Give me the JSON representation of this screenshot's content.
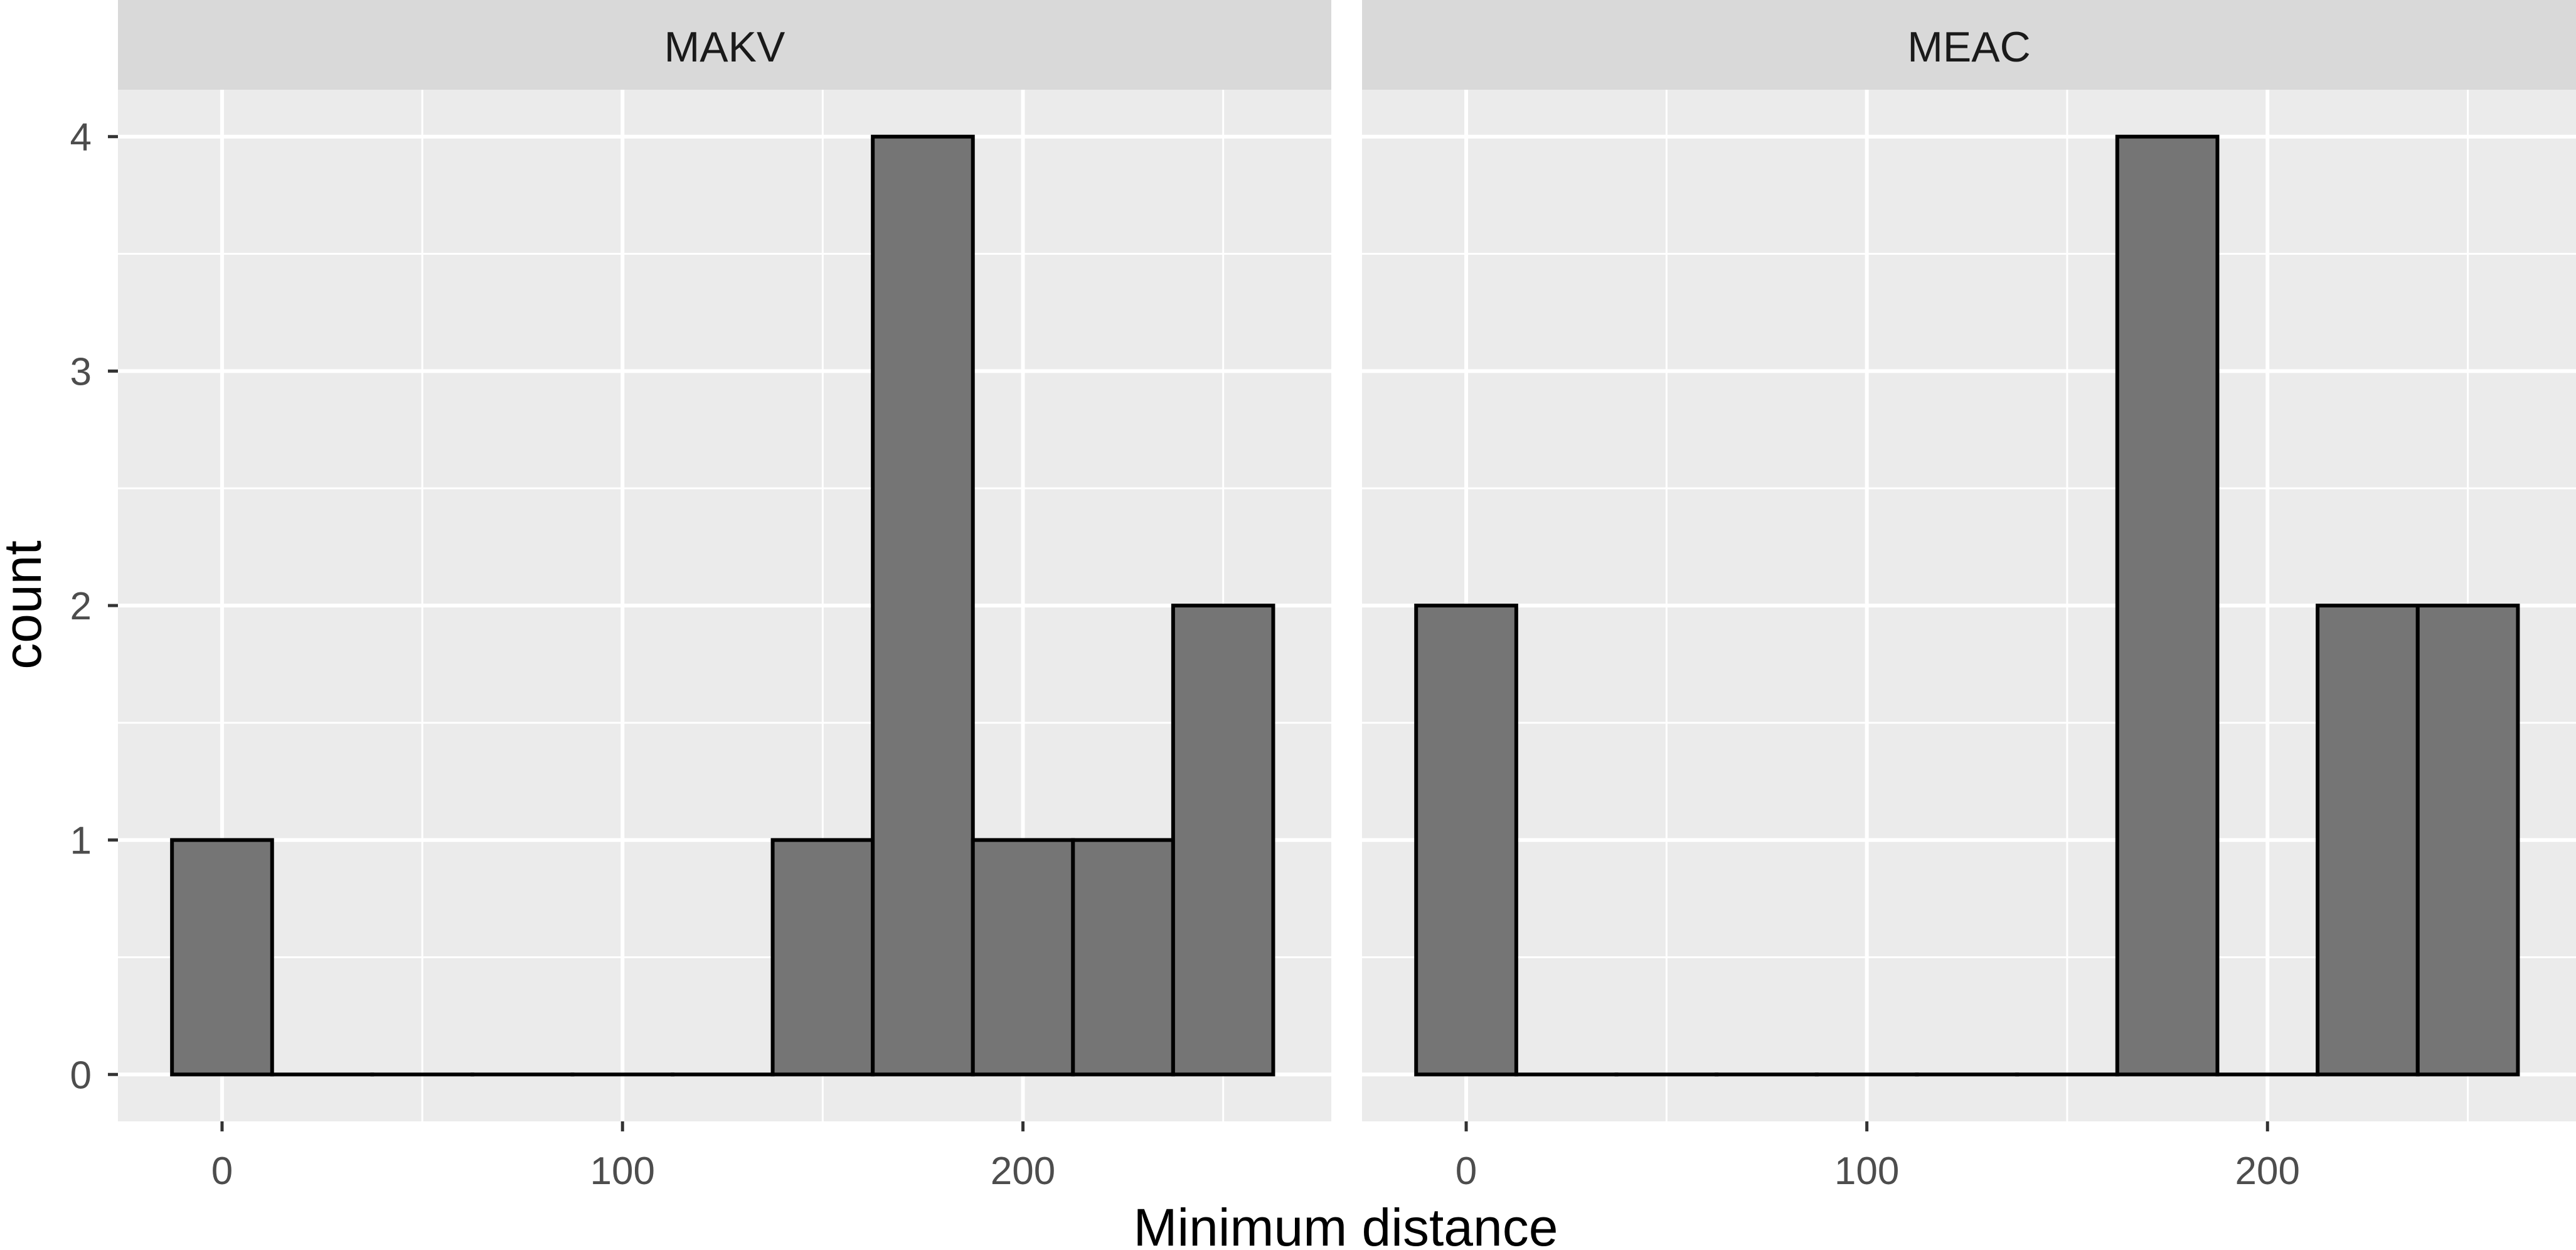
{
  "chart_data": {
    "type": "bar",
    "subtype": "faceted-histogram",
    "xlabel": "Minimum distance",
    "ylabel": "count",
    "xlim": [
      -26,
      277
    ],
    "ylim": [
      -0.2,
      4.2
    ],
    "x_ticks": [
      0,
      100,
      200
    ],
    "y_ticks": [
      0,
      1,
      2,
      3,
      4
    ],
    "binwidth": 25,
    "grid": true,
    "legend": "none",
    "facets": [
      {
        "label": "MAKV",
        "bins": [
          {
            "x": 0,
            "count": 1
          },
          {
            "x": 25,
            "count": 0
          },
          {
            "x": 50,
            "count": 0
          },
          {
            "x": 75,
            "count": 0
          },
          {
            "x": 100,
            "count": 0
          },
          {
            "x": 125,
            "count": 0
          },
          {
            "x": 150,
            "count": 1
          },
          {
            "x": 175,
            "count": 4
          },
          {
            "x": 200,
            "count": 1
          },
          {
            "x": 225,
            "count": 1
          },
          {
            "x": 250,
            "count": 2
          }
        ]
      },
      {
        "label": "MEAC",
        "bins": [
          {
            "x": 0,
            "count": 2
          },
          {
            "x": 25,
            "count": 0
          },
          {
            "x": 50,
            "count": 0
          },
          {
            "x": 75,
            "count": 0
          },
          {
            "x": 100,
            "count": 0
          },
          {
            "x": 125,
            "count": 0
          },
          {
            "x": 150,
            "count": 0
          },
          {
            "x": 175,
            "count": 4
          },
          {
            "x": 200,
            "count": 0
          },
          {
            "x": 225,
            "count": 2
          },
          {
            "x": 250,
            "count": 2
          }
        ]
      }
    ]
  },
  "colors": {
    "panel_background": "#ebebeb",
    "strip_background": "#d9d9d9",
    "grid": "#ffffff",
    "bar_fill": "#757575",
    "bar_outline": "#000000",
    "tick": "#333333"
  }
}
